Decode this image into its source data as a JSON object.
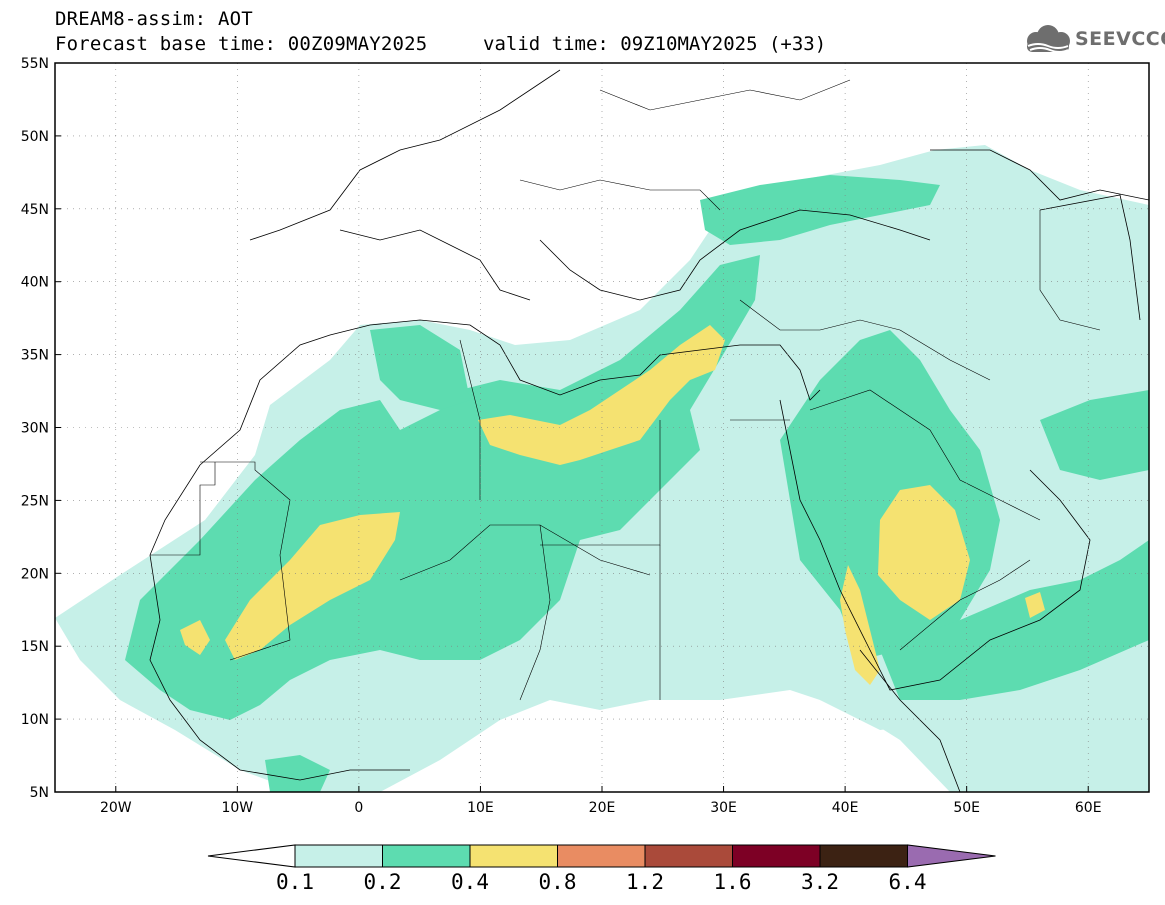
{
  "header": {
    "line1": "DREAM8-assim: AOT",
    "line2": "Forecast base time: 00Z09MAY2025",
    "valid": "valid time: 09Z10MAY2025 (+33)"
  },
  "logo": {
    "text": "SEEVCCC",
    "icon": "cloud-icon"
  },
  "map": {
    "lat_labels": [
      "55N",
      "50N",
      "45N",
      "40N",
      "35N",
      "30N",
      "25N",
      "20N",
      "15N",
      "10N",
      "5N"
    ],
    "lon_labels": [
      "20W",
      "10W",
      "0",
      "10E",
      "20E",
      "30E",
      "40E",
      "50E",
      "60E"
    ],
    "lon_range": [
      -25,
      65
    ],
    "lat_range": [
      5,
      55
    ],
    "grid": true
  },
  "colorbar": {
    "labels": [
      "0.1",
      "0.2",
      "0.4",
      "0.8",
      "1.2",
      "1.6",
      "3.2",
      "6.4"
    ],
    "colors": [
      "#c6f0e8",
      "#5ddcb0",
      "#f5e271",
      "#e98c62",
      "#aa4a3a",
      "#7d0025",
      "#3c2213",
      "#9a6bb0"
    ],
    "under_color": "#ffffff"
  }
}
